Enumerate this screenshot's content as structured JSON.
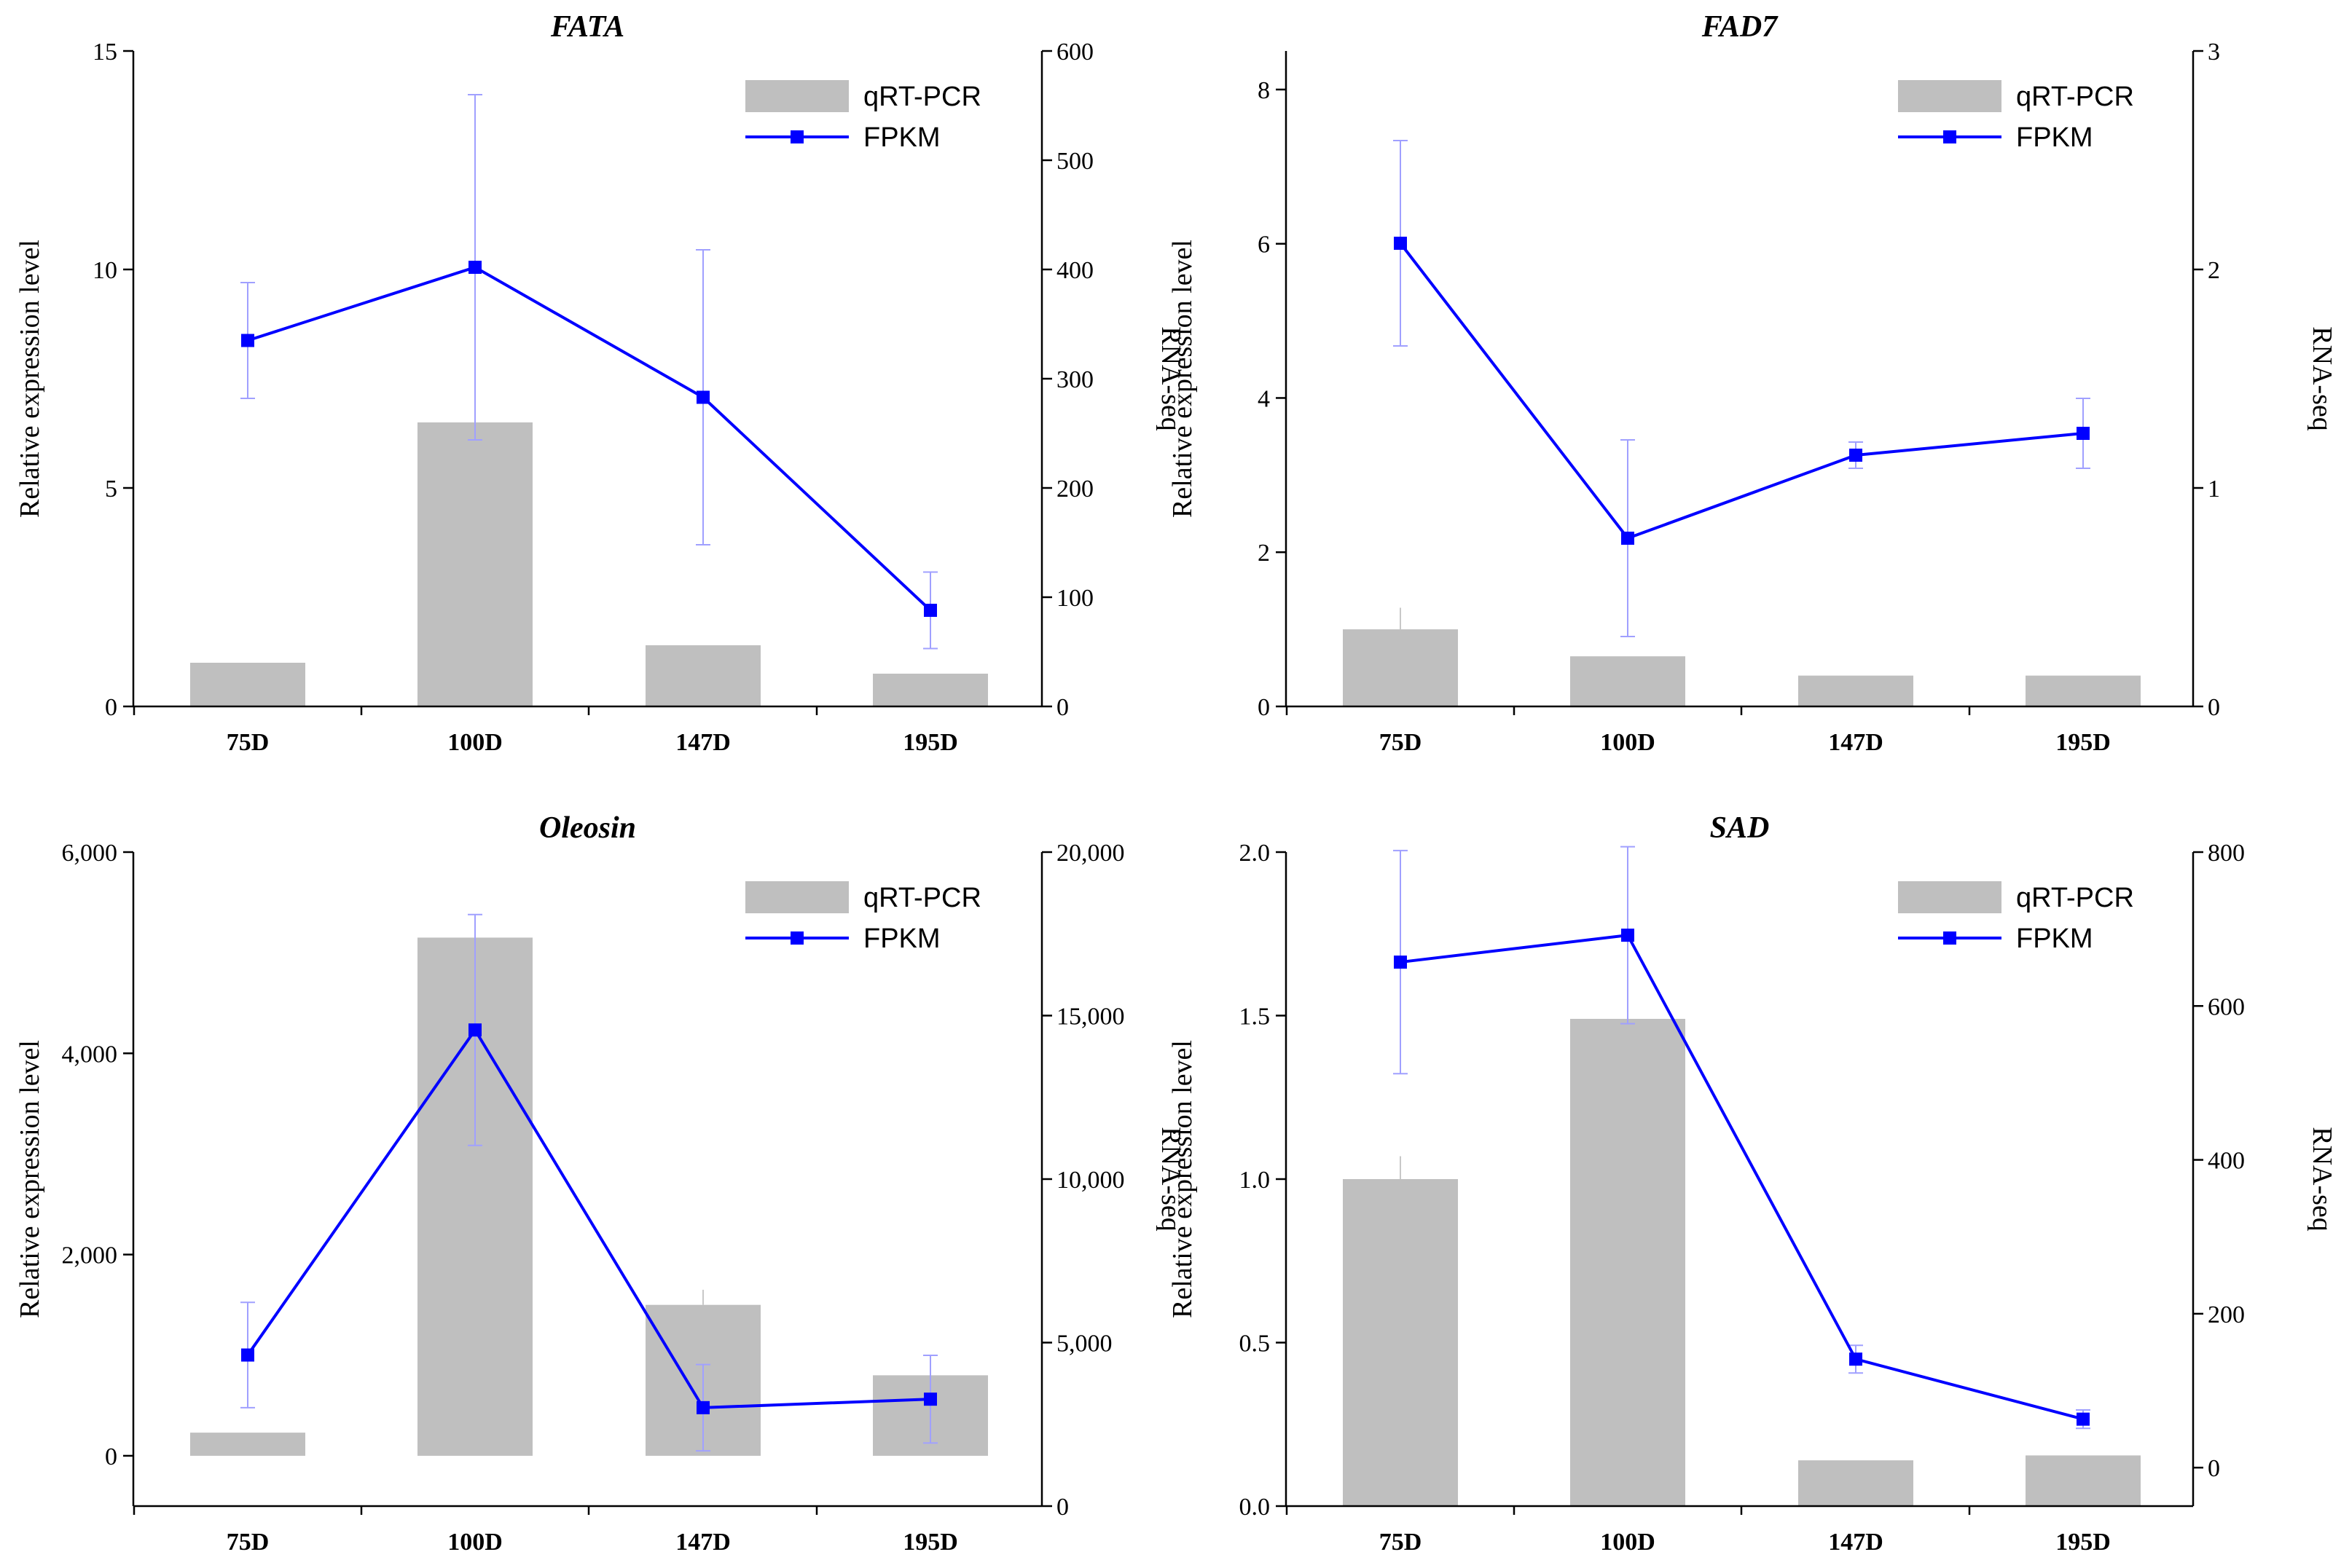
{
  "colors": {
    "bar": "#bfbfbf",
    "line": "#0000ff",
    "errorbar_line": "#a0a0ff",
    "errorbar_bar": "#c8c8c8",
    "axis": "#000000"
  },
  "chart_data": [
    {
      "type": "bar",
      "title": "FATA",
      "categories": [
        "75D",
        "100D",
        "147D",
        "195D"
      ],
      "ylabel": "Relative expression level",
      "y2label": "RNA-seq",
      "ylim": [
        0,
        15
      ],
      "yticks": [
        0,
        5,
        10,
        15
      ],
      "y2lim": [
        0,
        600
      ],
      "y2ticks": [
        0,
        100,
        200,
        300,
        400,
        500,
        600
      ],
      "legend": {
        "bar": "qRT-PCR",
        "line": "FPKM",
        "position": "top-right"
      },
      "series": [
        {
          "name": "qRT-PCR",
          "type": "bar",
          "axis": "left",
          "values": [
            1.0,
            6.5,
            1.4,
            0.75
          ],
          "errors": [
            0,
            0,
            0,
            0
          ]
        },
        {
          "name": "FPKM",
          "type": "line",
          "axis": "right",
          "values": [
            335,
            402,
            283,
            88
          ],
          "errors": [
            53,
            158,
            135,
            35
          ]
        }
      ]
    },
    {
      "type": "bar",
      "title": "FAD7",
      "categories": [
        "75D",
        "100D",
        "147D",
        "195D"
      ],
      "ylabel": "Relative expression level",
      "y2label": "RNA-seq",
      "ylim": [
        0,
        8.5
      ],
      "yticks": [
        0,
        2,
        4,
        6,
        8
      ],
      "y2lim": [
        0,
        3
      ],
      "y2ticks": [
        0,
        1,
        2,
        3
      ],
      "legend": {
        "bar": "qRT-PCR",
        "line": "FPKM",
        "position": "top-right"
      },
      "series": [
        {
          "name": "qRT-PCR",
          "type": "bar",
          "axis": "left",
          "values": [
            1.0,
            0.65,
            0.4,
            0.4
          ],
          "errors": [
            0.28,
            0,
            0,
            0
          ]
        },
        {
          "name": "FPKM",
          "type": "line",
          "axis": "right",
          "values": [
            2.12,
            0.77,
            1.15,
            1.25
          ],
          "errors": [
            0.47,
            0.45,
            0.06,
            0.16
          ]
        }
      ]
    },
    {
      "type": "bar",
      "title": "Oleosin",
      "categories": [
        "75D",
        "100D",
        "147D",
        "195D"
      ],
      "ylabel": "Relative expression level",
      "y2label": "RNA-seq",
      "ylim": [
        -500,
        6000
      ],
      "yticks": [
        0,
        2000,
        4000,
        6000
      ],
      "ytick_labels": [
        "0",
        "2,000",
        "4,000",
        "6,000"
      ],
      "y2lim": [
        0,
        20000
      ],
      "y2ticks": [
        0,
        5000,
        10000,
        15000,
        20000
      ],
      "y2tick_labels": [
        "0",
        "5,000",
        "10,000",
        "15,000",
        "20,000"
      ],
      "legend": {
        "bar": "qRT-PCR",
        "line": "FPKM",
        "position": "top-right"
      },
      "series": [
        {
          "name": "qRT-PCR",
          "type": "bar",
          "axis": "left",
          "values": [
            230,
            5150,
            1500,
            800
          ],
          "errors": [
            0,
            0,
            150,
            0
          ]
        },
        {
          "name": "FPKM",
          "type": "line",
          "axis": "right",
          "values": [
            4620,
            14560,
            3010,
            3270
          ],
          "errors": [
            1610,
            3530,
            1320,
            1340
          ]
        }
      ]
    },
    {
      "type": "bar",
      "title": "SAD",
      "categories": [
        "75D",
        "100D",
        "147D",
        "195D"
      ],
      "ylabel": "Relative expression level",
      "y2label": "RNA-seq",
      "ylim": [
        0,
        2.0
      ],
      "yticks": [
        0.0,
        0.5,
        1.0,
        1.5,
        2.0
      ],
      "ytick_labels": [
        "0.0",
        "0.5",
        "1.0",
        "1.5",
        "2.0"
      ],
      "y2lim": [
        -50,
        800
      ],
      "y2ticks": [
        0,
        200,
        400,
        600,
        800
      ],
      "legend": {
        "bar": "qRT-PCR",
        "line": "FPKM",
        "position": "top-right"
      },
      "series": [
        {
          "name": "qRT-PCR",
          "type": "bar",
          "axis": "left",
          "values": [
            1.0,
            1.49,
            0.14,
            0.155
          ],
          "errors": [
            0.07,
            0,
            0,
            0
          ]
        },
        {
          "name": "FPKM",
          "type": "line",
          "axis": "right",
          "values": [
            657,
            692,
            141,
            63
          ],
          "errors": [
            145,
            115,
            18,
            12
          ]
        }
      ]
    }
  ]
}
